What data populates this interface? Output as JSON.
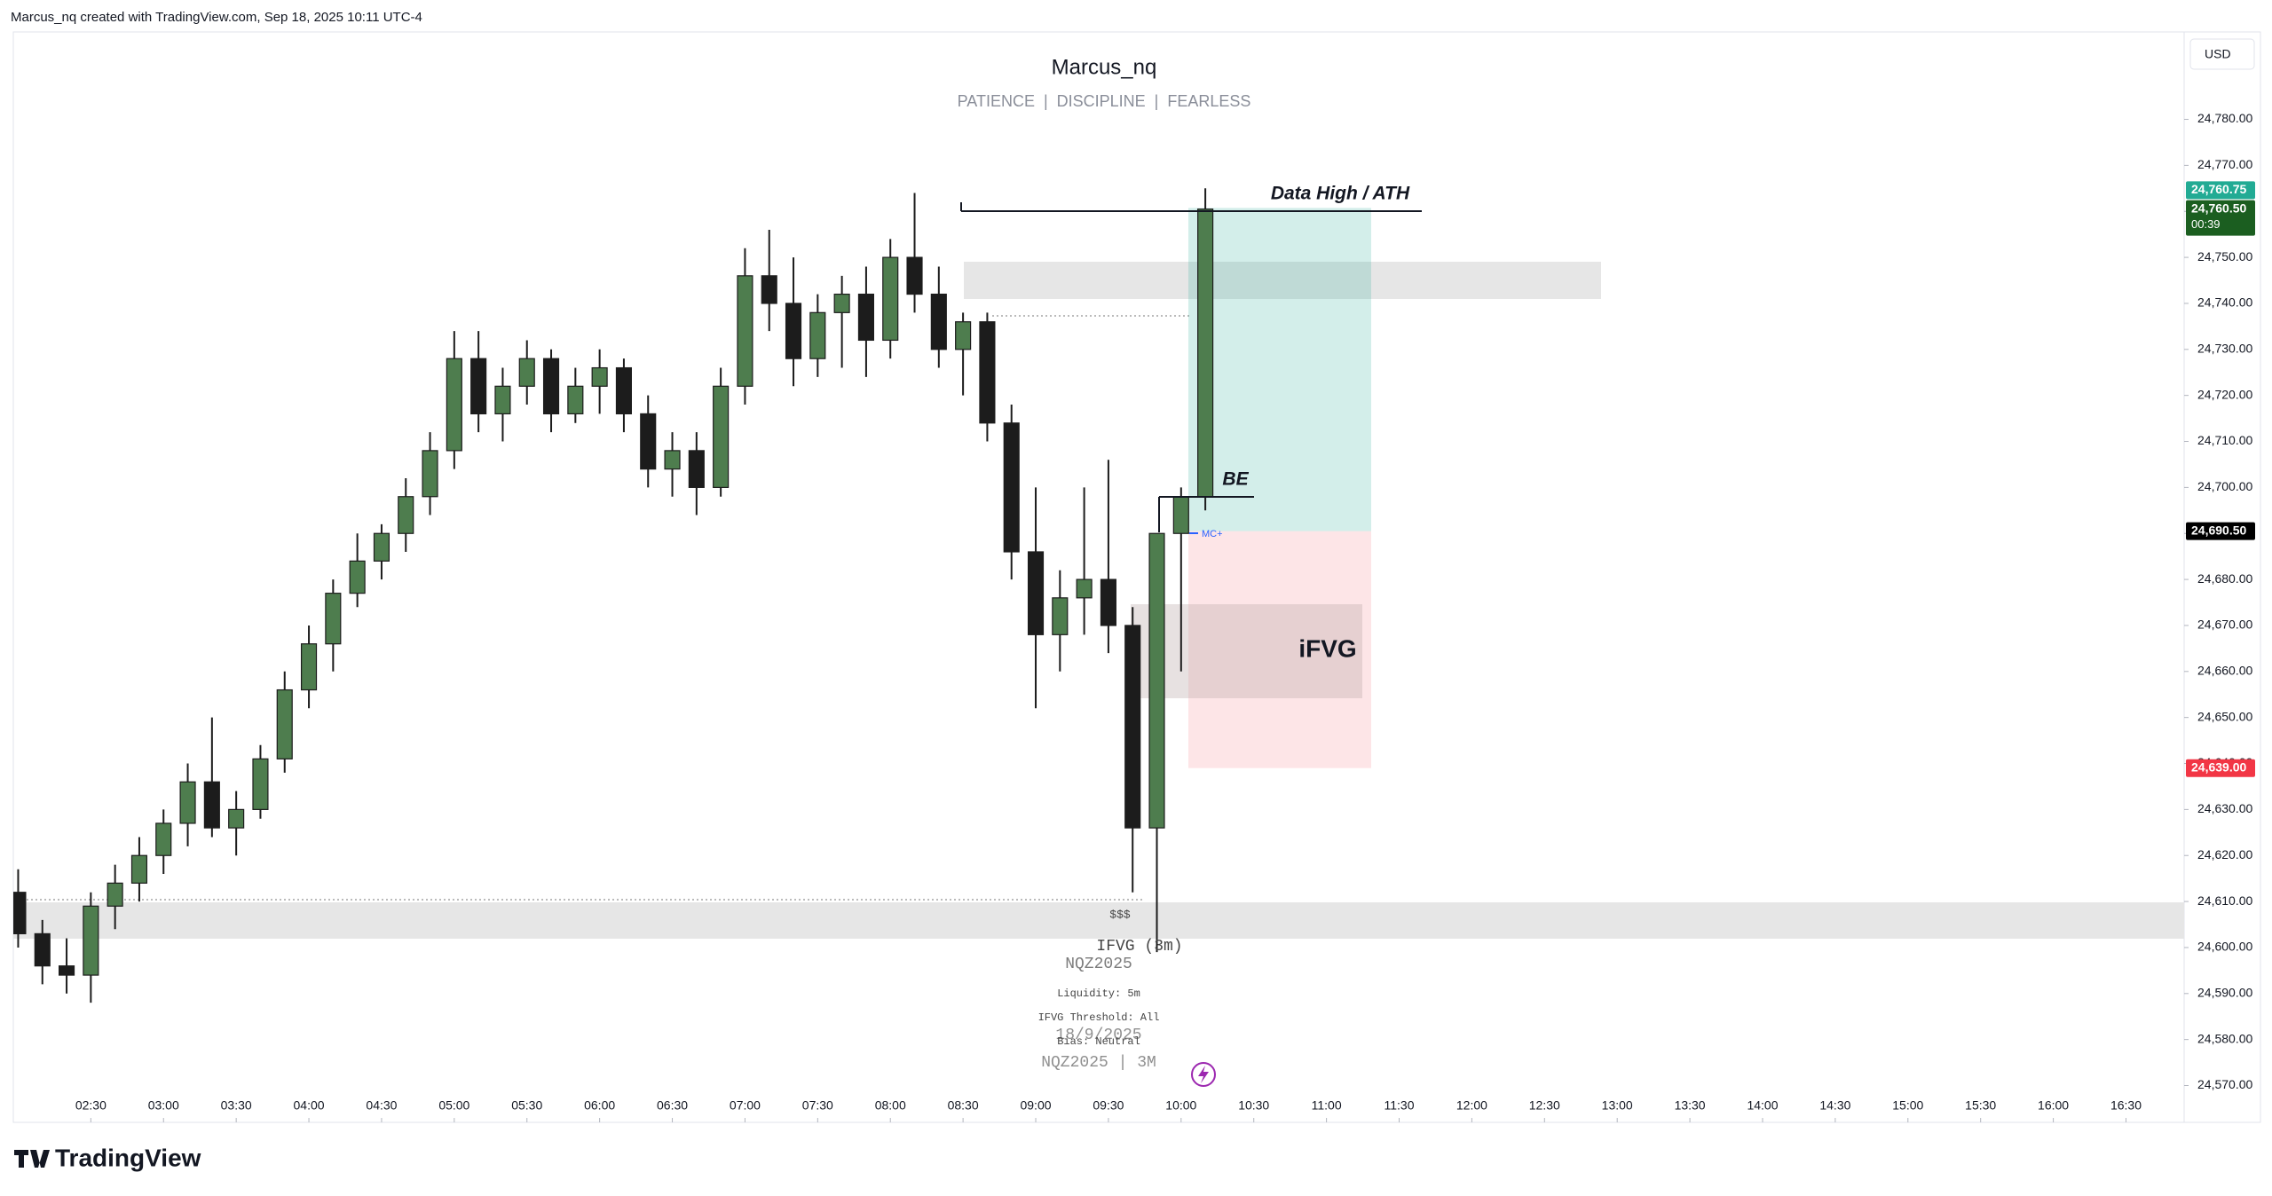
{
  "header": {
    "credit": "Marcus_nq created with TradingView.com, Sep 18, 2025 10:11 UTC-4",
    "logo": "TradingView"
  },
  "chart_data": {
    "type": "candlestick",
    "title": "Marcus_nq",
    "subtitle": "PATIENCE  |  DISCIPLINE  |  FEARLESS",
    "currency": "USD",
    "countdown": "00:39",
    "colors": {
      "up": "#4e7d4e",
      "down": "#1c1c1c"
    },
    "x": [
      120,
      130,
      140,
      150,
      160,
      170,
      180,
      190,
      200,
      210,
      220,
      230,
      240,
      250,
      260,
      270,
      280,
      290,
      300,
      310,
      320,
      330,
      340,
      350,
      360,
      370,
      380,
      390,
      400,
      410,
      420,
      430,
      440,
      450,
      460,
      470,
      480,
      490,
      500,
      510,
      520,
      530,
      540,
      550,
      560,
      570,
      580,
      590,
      600,
      610
    ],
    "open": [
      24612,
      24603,
      24596,
      24594,
      24609,
      24614,
      24620,
      24627,
      24636,
      24626,
      24630,
      24641,
      24656,
      24666,
      24677,
      24684,
      24690,
      24698,
      24708,
      24728,
      24716,
      24722,
      24728,
      24716,
      24722,
      24726,
      24716,
      24704,
      24708,
      24700,
      24722,
      24746,
      24740,
      24728,
      24738,
      24742,
      24732,
      24750,
      24742,
      24730,
      24736,
      24714,
      24686,
      24668,
      24676,
      24680,
      24670,
      24626,
      24690,
      24698
    ],
    "high": [
      24617,
      24606,
      24602,
      24612,
      24618,
      24624,
      24630,
      24640,
      24650,
      24634,
      24644,
      24660,
      24670,
      24680,
      24690,
      24692,
      24702,
      24712,
      24734,
      24734,
      24726,
      24732,
      24730,
      24726,
      24730,
      24728,
      24720,
      24712,
      24712,
      24726,
      24752,
      24756,
      24750,
      24742,
      24746,
      24748,
      24754,
      24764,
      24748,
      24738,
      24738,
      24718,
      24700,
      24682,
      24700,
      24706,
      24674,
      24690,
      24700,
      24765
    ],
    "low": [
      24600,
      24592,
      24590,
      24588,
      24604,
      24610,
      24616,
      24622,
      24624,
      24620,
      24628,
      24638,
      24652,
      24660,
      24674,
      24680,
      24686,
      24694,
      24704,
      24712,
      24710,
      24718,
      24712,
      24714,
      24716,
      24712,
      24700,
      24698,
      24694,
      24698,
      24718,
      24734,
      24722,
      24724,
      24726,
      24724,
      24728,
      24738,
      24726,
      24720,
      24710,
      24680,
      24652,
      24660,
      24668,
      24664,
      24612,
      24599,
      24660,
      24695
    ],
    "close": [
      24603,
      24596,
      24594,
      24609,
      24614,
      24620,
      24627,
      24636,
      24626,
      24630,
      24641,
      24656,
      24666,
      24677,
      24684,
      24690,
      24698,
      24708,
      24728,
      24716,
      24722,
      24728,
      24716,
      24722,
      24726,
      24716,
      24704,
      24708,
      24700,
      24722,
      24746,
      24740,
      24728,
      24738,
      24742,
      24732,
      24750,
      24742,
      24730,
      24736,
      24714,
      24686,
      24668,
      24676,
      24680,
      24670,
      24626,
      24690,
      24698,
      24760.5
    ],
    "xlim": [
      118,
      1014
    ],
    "ylim": [
      24562,
      24799
    ],
    "xticks": [
      {
        "value": 150,
        "label": "02:30"
      },
      {
        "value": 180,
        "label": "03:00"
      },
      {
        "value": 210,
        "label": "03:30"
      },
      {
        "value": 240,
        "label": "04:00"
      },
      {
        "value": 270,
        "label": "04:30"
      },
      {
        "value": 300,
        "label": "05:00"
      },
      {
        "value": 330,
        "label": "05:30"
      },
      {
        "value": 360,
        "label": "06:00"
      },
      {
        "value": 390,
        "label": "06:30"
      },
      {
        "value": 420,
        "label": "07:00"
      },
      {
        "value": 450,
        "label": "07:30"
      },
      {
        "value": 480,
        "label": "08:00"
      },
      {
        "value": 510,
        "label": "08:30"
      },
      {
        "value": 540,
        "label": "09:00"
      },
      {
        "value": 570,
        "label": "09:30"
      },
      {
        "value": 600,
        "label": "10:00"
      },
      {
        "value": 630,
        "label": "10:30"
      },
      {
        "value": 660,
        "label": "11:00"
      },
      {
        "value": 690,
        "label": "11:30"
      },
      {
        "value": 720,
        "label": "12:00"
      },
      {
        "value": 750,
        "label": "12:30"
      },
      {
        "value": 780,
        "label": "13:00"
      },
      {
        "value": 810,
        "label": "13:30"
      },
      {
        "value": 840,
        "label": "14:00"
      },
      {
        "value": 870,
        "label": "14:30"
      },
      {
        "value": 900,
        "label": "15:00"
      },
      {
        "value": 930,
        "label": "15:30"
      },
      {
        "value": 960,
        "label": "16:00"
      },
      {
        "value": 990,
        "label": "16:30"
      }
    ],
    "yticks": [
      {
        "value": 24570,
        "label": "24,570.00"
      },
      {
        "value": 24580,
        "label": "24,580.00"
      },
      {
        "value": 24590,
        "label": "24,590.00"
      },
      {
        "value": 24600,
        "label": "24,600.00"
      },
      {
        "value": 24610,
        "label": "24,610.00"
      },
      {
        "value": 24620,
        "label": "24,620.00"
      },
      {
        "value": 24630,
        "label": "24,630.00"
      },
      {
        "value": 24640,
        "label": "24,640.00"
      },
      {
        "value": 24650,
        "label": "24,650.00"
      },
      {
        "value": 24660,
        "label": "24,660.00"
      },
      {
        "value": 24670,
        "label": "24,670.00"
      },
      {
        "value": 24680,
        "label": "24,680.00"
      },
      {
        "value": 24690,
        "label": "24,690.00"
      },
      {
        "value": 24700,
        "label": "24,700.00"
      },
      {
        "value": 24710,
        "label": "24,710.00"
      },
      {
        "value": 24720,
        "label": "24,720.00"
      },
      {
        "value": 24730,
        "label": "24,730.00"
      },
      {
        "value": 24740,
        "label": "24,740.00"
      },
      {
        "value": 24750,
        "label": "24,750.00"
      },
      {
        "value": 24760,
        "label": "24,760.00"
      },
      {
        "value": 24770,
        "label": "24,770.00"
      },
      {
        "value": 24780,
        "label": "24,780.00"
      }
    ],
    "price_labels": [
      {
        "value": 24760.75,
        "label": "24,760.75",
        "color": "#22ab94"
      },
      {
        "value": 24760.5,
        "label": "24,760.50",
        "color": "#1b5e20"
      },
      {
        "value": 24690.5,
        "label": "24,690.50",
        "color": "#000000"
      },
      {
        "value": 24639,
        "label": "24,639.00",
        "color": "#f23645"
      }
    ],
    "annotations": [
      "Data High / ATH",
      "BE",
      "iFVG",
      "MC+",
      "$$$",
      "IFVG (3m)",
      "NQZ2025",
      "Liquidity: 5m",
      "IFVG Threshold: All",
      "18/9/2025",
      "Bias: Neutral",
      "NQZ2025 | 3M"
    ]
  }
}
